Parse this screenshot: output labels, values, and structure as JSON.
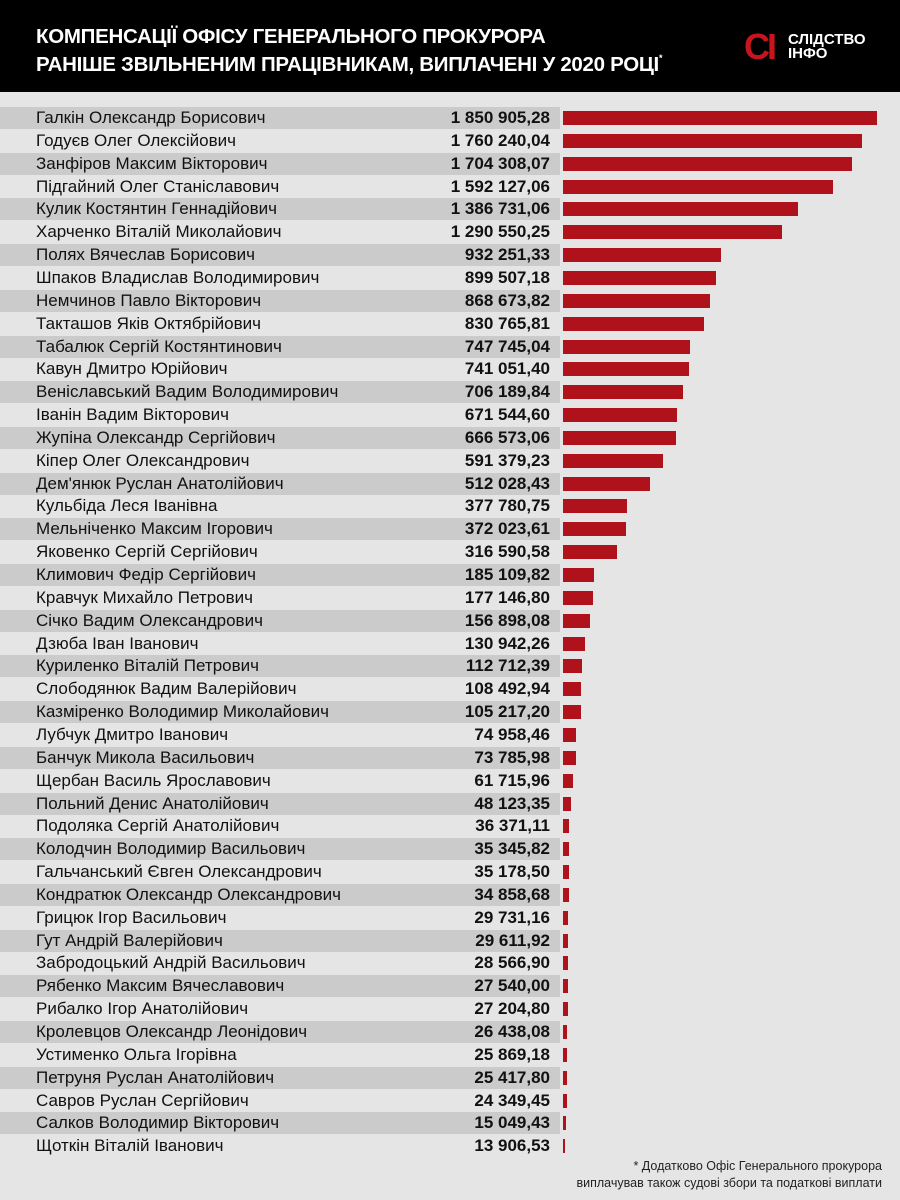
{
  "header": {
    "title_line1": "КОМПЕНСАЦІЇ ОФІСУ ГЕНЕРАЛЬНОГО ПРОКУРОРА",
    "title_line2": "РАНІШЕ ЗВІЛЬНЕНИМ ПРАЦІВНИКАМ, ВИПЛАЧЕНІ У 2020 РОЦІ",
    "title_mark": "*",
    "logo_mark": "СІ",
    "logo_line1": "СЛІДСТВО",
    "logo_line2": "ІНФО"
  },
  "colors": {
    "bar": "#b0121b",
    "header": "#000000",
    "background": "#e5e5e5",
    "shade": "#cbcbcb"
  },
  "chart_data": {
    "type": "bar",
    "orientation": "horizontal",
    "title": "КОМПЕНСАЦІЇ ОФІСУ ГЕНЕРАЛЬНОГО ПРОКУРОРА РАНІШЕ ЗВІЛЬНЕНИМ ПРАЦІВНИКАМ, ВИПЛАЧЕНІ У 2020 РОЦІ",
    "categories": [
      "Галкін Олександр Борисович",
      "Годуєв Олег Олексійович",
      "Занфіров Максим Вікторович",
      "Підгайний Олег Станіславович",
      "Кулик Костянтин Геннадійович",
      "Харченко Віталій Миколайович",
      "Полях Вячеслав Борисович",
      "Шпаков Владислав Володимирович",
      "Немчинов Павло Вікторович",
      "Такташов Яків Октябрійович",
      "Табалюк Сергій Костянтинович",
      "Кавун Дмитро Юрійович",
      "Веніславський Вадим Володимирович",
      "Іванін Вадим Вікторович",
      "Жупіна Олександр Сергійович",
      "Кіпер Олег Олександрович",
      "Дем'янюк Руслан Анатолійович",
      "Кульбіда Леся Іванівна",
      "Мельніченко Максим Ігорович",
      "Яковенко Сергій Сергійович",
      "Климович Федір Сергійович",
      "Кравчук Михайло Петрович",
      "Січко Вадим Олександрович",
      "Дзюба Іван Іванович",
      "Куриленко Віталій Петрович",
      "Слободянюк Вадим Валерійович",
      "Казміренко Володимир Миколайович",
      "Лубчук Дмитро Іванович",
      "Банчук Микола Васильович",
      "Щербан Василь Ярославович",
      "Польний Денис Анатолійович",
      "Подоляка Сергій Анатолійович",
      "Колодчин Володимир Васильович",
      "Гальчанський Євген Олександрович",
      "Кондратюк Олександр Олександрович",
      "Грицюк Ігор Васильович",
      "Гут Андрій Валерійович",
      "Забродоцький Андрій Васильович",
      "Рябенко Максим Вячеславович",
      "Рибалко Ігор Анатолійович",
      "Кролевцов Олександр Леонідович",
      "Устименко Ольга Ігорівна",
      "Петруня Руслан Анатолійович",
      "Савров Руслан Сергійович",
      "Салков Володимир Вікторович",
      "Щоткін Віталій Іванович"
    ],
    "labels": [
      "1 850 905,28",
      "1 760 240,04",
      "1 704 308,07",
      "1 592 127,06",
      "1 386 731,06",
      "1 290 550,25",
      "932 251,33",
      "899 507,18",
      "868 673,82",
      "830 765,81",
      "747 745,04",
      "741 051,40",
      "706 189,84",
      "671 544,60",
      "666 573,06",
      "591 379,23",
      "512 028,43",
      "377 780,75",
      "372 023,61",
      "316 590,58",
      "185 109,82",
      "177 146,80",
      "156 898,08",
      "130 942,26",
      "112 712,39",
      "108 492,94",
      "105 217,20",
      "74 958,46",
      "73 785,98",
      "61 715,96",
      "48 123,35",
      "36 371,11",
      "35 345,82",
      "35 178,50",
      "34 858,68",
      "29 731,16",
      "29 611,92",
      "28 566,90",
      "27 540,00",
      "27 204,80",
      "26 438,08",
      "25 869,18",
      "25 417,80",
      "24 349,45",
      "15 049,43",
      "13 906,53"
    ],
    "values": [
      1850905.28,
      1760240.04,
      1704308.07,
      1592127.06,
      1386731.06,
      1290550.25,
      932251.33,
      899507.18,
      868673.82,
      830765.81,
      747745.04,
      741051.4,
      706189.84,
      671544.6,
      666573.06,
      591379.23,
      512028.43,
      377780.75,
      372023.61,
      316590.58,
      185109.82,
      177146.8,
      156898.08,
      130942.26,
      112712.39,
      108492.94,
      105217.2,
      74958.46,
      73785.98,
      61715.96,
      48123.35,
      36371.11,
      35345.82,
      35178.5,
      34858.68,
      29731.16,
      29611.92,
      28566.9,
      27540.0,
      27204.8,
      26438.08,
      25869.18,
      25417.8,
      24349.45,
      15049.43,
      13906.53
    ],
    "xlim": [
      0,
      1850905.28
    ],
    "grid": false,
    "xlabel": "",
    "ylabel": ""
  },
  "footnote": {
    "line1": "* Додатково Офіс Генерального прокурора",
    "line2": "виплачував також судові збори та податкові виплати"
  }
}
